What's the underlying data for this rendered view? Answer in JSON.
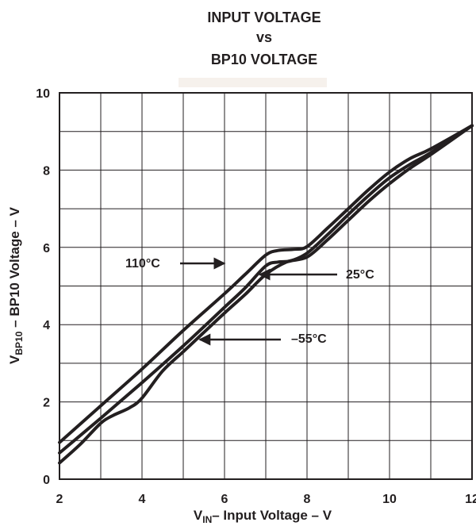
{
  "chart_data": {
    "type": "line",
    "title_lines": [
      "INPUT VOLTAGE",
      "vs",
      "BP10 VOLTAGE"
    ],
    "xlabel": {
      "main": "V",
      "sub": "IN",
      "rest": "– Input Voltage – V"
    },
    "ylabel": {
      "main": "V",
      "sub": "BP10",
      "rest": " – BP10 Voltage – V"
    },
    "xlim": [
      2,
      12
    ],
    "ylim": [
      0,
      10
    ],
    "x_ticks": [
      "2",
      "4",
      "6",
      "8",
      "10",
      "12"
    ],
    "y_ticks": [
      "0",
      "2",
      "4",
      "6",
      "8",
      "10"
    ],
    "grid": true,
    "series": [
      {
        "name": "110°C",
        "points": [
          [
            2,
            0.95
          ],
          [
            3,
            1.9
          ],
          [
            4,
            2.85
          ],
          [
            5,
            3.85
          ],
          [
            6,
            4.8
          ],
          [
            6.5,
            5.3
          ],
          [
            7,
            5.8
          ],
          [
            7.3,
            5.92
          ],
          [
            7.7,
            5.95
          ],
          [
            8,
            6.02
          ],
          [
            8.5,
            6.5
          ],
          [
            9,
            7.0
          ],
          [
            9.5,
            7.5
          ],
          [
            10,
            7.95
          ],
          [
            10.5,
            8.3
          ],
          [
            11,
            8.55
          ],
          [
            12,
            9.15
          ]
        ]
      },
      {
        "name": "25°C",
        "points": [
          [
            2,
            0.68
          ],
          [
            3,
            1.58
          ],
          [
            4,
            2.5
          ],
          [
            5,
            3.45
          ],
          [
            6,
            4.45
          ],
          [
            6.5,
            4.95
          ],
          [
            7,
            5.52
          ],
          [
            7.3,
            5.62
          ],
          [
            7.6,
            5.65
          ],
          [
            8,
            5.85
          ],
          [
            8.5,
            6.33
          ],
          [
            9,
            6.85
          ],
          [
            9.5,
            7.35
          ],
          [
            10,
            7.8
          ],
          [
            10.5,
            8.15
          ],
          [
            11,
            8.45
          ],
          [
            12,
            9.15
          ]
        ]
      },
      {
        "name": "–55°C",
        "points": [
          [
            2,
            0.42
          ],
          [
            2.5,
            0.9
          ],
          [
            3,
            1.45
          ],
          [
            3.3,
            1.65
          ],
          [
            3.7,
            1.85
          ],
          [
            4,
            2.1
          ],
          [
            4.5,
            2.8
          ],
          [
            5,
            3.3
          ],
          [
            5.5,
            3.8
          ],
          [
            6,
            4.3
          ],
          [
            6.5,
            4.78
          ],
          [
            7,
            5.3
          ],
          [
            7.5,
            5.62
          ],
          [
            8,
            5.75
          ],
          [
            8.5,
            6.2
          ],
          [
            9,
            6.7
          ],
          [
            9.5,
            7.2
          ],
          [
            10,
            7.65
          ],
          [
            10.5,
            8.05
          ],
          [
            11,
            8.4
          ],
          [
            12,
            9.15
          ]
        ]
      }
    ],
    "annotations": [
      {
        "label": "110°C",
        "arrow_to": [
          6.0,
          5.45
        ]
      },
      {
        "label": "25°C",
        "arrow_to": [
          6.85,
          5.35
        ]
      },
      {
        "label": "–55°C",
        "arrow_to": [
          5.4,
          3.65
        ]
      }
    ]
  }
}
